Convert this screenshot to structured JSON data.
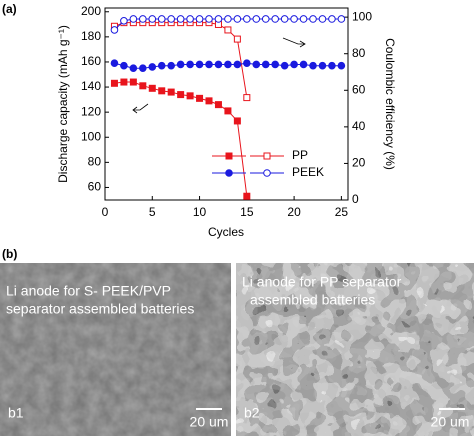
{
  "chart_data": {
    "type": "line",
    "xlabel": "Cycles",
    "ylabel": "Discharge capacity (mAh g⁻¹)",
    "y2label": "Coulombic efficiency (%)",
    "xlim": [
      0,
      25.7
    ],
    "xticks": [
      0,
      5,
      10,
      15,
      20,
      25
    ],
    "ylim": [
      50,
      203
    ],
    "yticks": [
      60,
      80,
      100,
      120,
      140,
      160,
      180,
      200
    ],
    "y2lim": [
      0,
      105
    ],
    "y2ticks": [
      0,
      20,
      40,
      60,
      80,
      100
    ],
    "legend": "lower right",
    "series": [
      {
        "name": "PP",
        "color": "#e8141c",
        "marker": "square",
        "filled": true,
        "axis": "y",
        "x": [
          1,
          2,
          3,
          4,
          5,
          6,
          7,
          8,
          9,
          10,
          11,
          12,
          13,
          14,
          15
        ],
        "values": [
          143,
          144,
          144,
          141,
          139,
          137,
          136,
          134,
          133,
          131,
          129,
          126,
          121,
          113,
          53
        ]
      },
      {
        "name": "PP",
        "color": "#e8141c",
        "marker": "square",
        "filled": false,
        "axis": "y2",
        "x": [
          1,
          2,
          3,
          4,
          5,
          6,
          7,
          8,
          9,
          10,
          11,
          12,
          13,
          14,
          15
        ],
        "values": [
          95,
          97,
          97,
          97,
          97,
          97,
          97,
          97,
          97,
          97,
          97,
          96,
          93,
          88,
          56
        ]
      },
      {
        "name": "PEEK",
        "color": "#1a1adf",
        "marker": "circle",
        "filled": true,
        "axis": "y",
        "x": [
          1,
          2,
          3,
          4,
          5,
          6,
          7,
          8,
          9,
          10,
          11,
          12,
          13,
          14,
          15,
          16,
          17,
          18,
          19,
          20,
          21,
          22,
          23,
          24,
          25
        ],
        "values": [
          159,
          157,
          155,
          155,
          156,
          157,
          157,
          158,
          158,
          158,
          158,
          158,
          158,
          158,
          159,
          158,
          158,
          158,
          157,
          158,
          158,
          157,
          157,
          157,
          157
        ]
      },
      {
        "name": "PEEK",
        "color": "#1a1adf",
        "marker": "circle",
        "filled": false,
        "axis": "y2",
        "x": [
          1,
          2,
          3,
          4,
          5,
          6,
          7,
          8,
          9,
          10,
          11,
          12,
          13,
          14,
          15,
          16,
          17,
          18,
          19,
          20,
          21,
          22,
          23,
          24,
          25
        ],
        "values": [
          93,
          98,
          99,
          99,
          99,
          99,
          99,
          99,
          99,
          99,
          99,
          99,
          99,
          99,
          99,
          99,
          99,
          99,
          99,
          99,
          99,
          99,
          99,
          99,
          99
        ]
      }
    ]
  },
  "panel_labels": [
    "(a)",
    "(b)"
  ],
  "images": [
    {
      "caption": [
        "Li anode for S- PEEK/PVP",
        "separator assembled batteries"
      ],
      "label": "b1",
      "scale": "20 um"
    },
    {
      "caption": [
        "Li anode for PP separator",
        "assembled batteries"
      ],
      "label": "b2",
      "scale": "20 um"
    }
  ]
}
